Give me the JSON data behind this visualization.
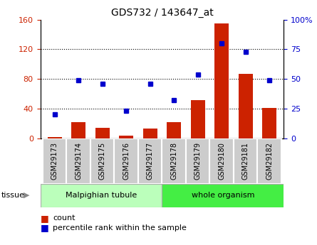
{
  "title": "GDS732 / 143647_at",
  "categories": [
    "GSM29173",
    "GSM29174",
    "GSM29175",
    "GSM29176",
    "GSM29177",
    "GSM29178",
    "GSM29179",
    "GSM29180",
    "GSM29181",
    "GSM29182"
  ],
  "counts": [
    2,
    22,
    14,
    4,
    13,
    22,
    52,
    155,
    87,
    41
  ],
  "percentiles": [
    20,
    49,
    46,
    23,
    46,
    32,
    54,
    80,
    73,
    49
  ],
  "left_ylim": [
    0,
    160
  ],
  "left_yticks": [
    0,
    40,
    80,
    120,
    160
  ],
  "left_yticklabels": [
    "0",
    "40",
    "80",
    "120",
    "160"
  ],
  "right_ylim": [
    0,
    100
  ],
  "right_yticks": [
    0,
    25,
    50,
    75,
    100
  ],
  "right_yticklabels": [
    "0",
    "25",
    "50",
    "75",
    "100%"
  ],
  "bar_color": "#cc2200",
  "dot_color": "#0000cc",
  "tissue_groups": [
    {
      "label": "Malpighian tubule",
      "start": 0,
      "end": 5,
      "color": "#bbffbb"
    },
    {
      "label": "whole organism",
      "start": 5,
      "end": 10,
      "color": "#44ee44"
    }
  ],
  "legend_count_label": "count",
  "legend_pct_label": "percentile rank within the sample",
  "tissue_label": "tissue",
  "tick_bg_color": "#cccccc",
  "grid_color": "#000000",
  "tick_label_color_left": "#cc2200",
  "tick_label_color_right": "#0000cc"
}
